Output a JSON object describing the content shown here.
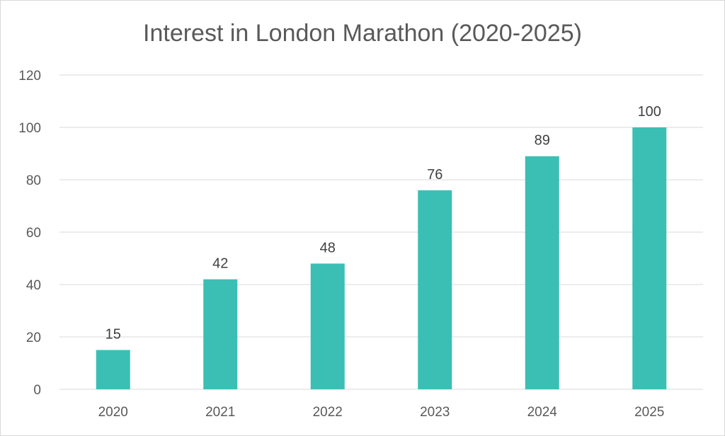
{
  "chart_data": {
    "type": "bar",
    "title": "Interest in London Marathon (2020-2025)",
    "categories": [
      "2020",
      "2021",
      "2022",
      "2023",
      "2024",
      "2025"
    ],
    "values": [
      15,
      42,
      48,
      76,
      89,
      100
    ],
    "data_labels": [
      "15",
      "42",
      "48",
      "76",
      "89",
      "100"
    ],
    "y_ticks": [
      "0",
      "20",
      "40",
      "60",
      "80",
      "100",
      "120"
    ],
    "ylim": [
      0,
      120
    ],
    "xlabel": "",
    "ylabel": "",
    "grid": true,
    "legend": "none",
    "bar_color": "#3bbfb5",
    "grid_color": "#d9d9d9",
    "text_color": "#595959"
  }
}
